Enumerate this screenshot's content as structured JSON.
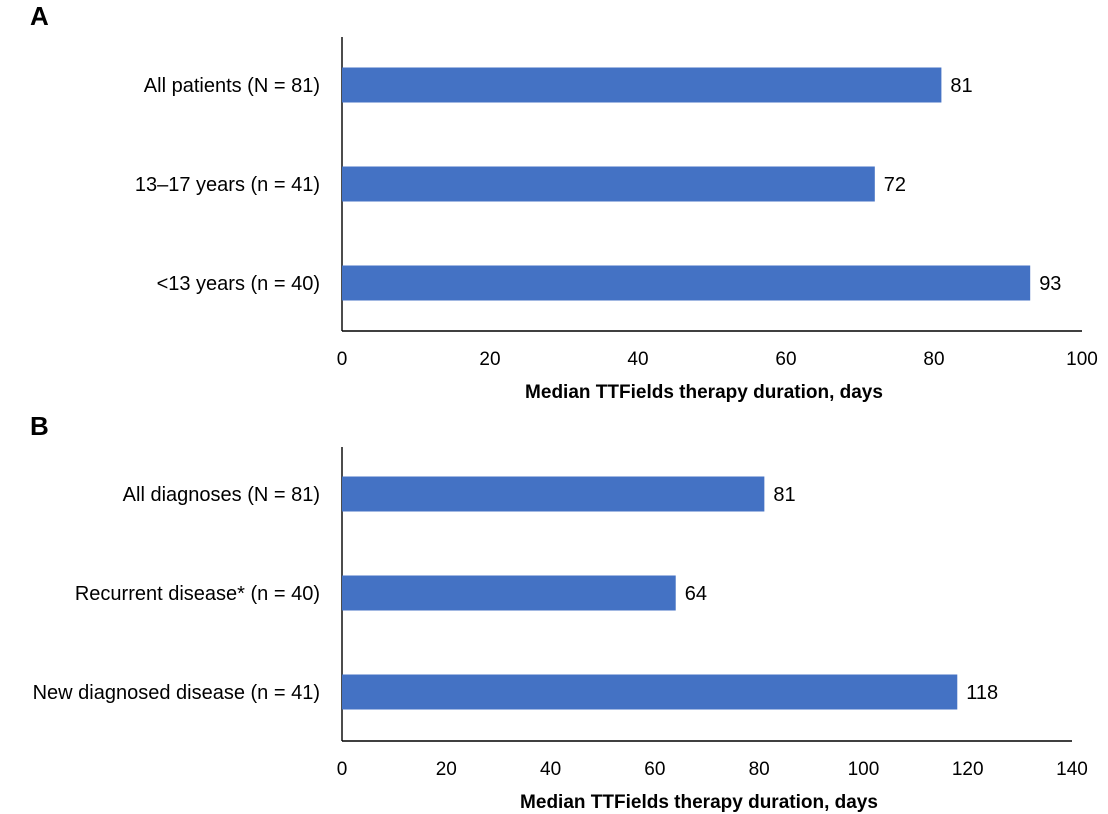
{
  "chart_data": [
    {
      "type": "bar",
      "orientation": "horizontal",
      "panel_label": "A",
      "categories": [
        "All patients (N = 81)",
        "13–17 years (n = 41)",
        "<13 years (n = 40)"
      ],
      "values": [
        81,
        72,
        93
      ],
      "xlabel": "Median TTFields therapy duration, days",
      "xlim": [
        0,
        100
      ],
      "xticks": [
        0,
        20,
        40,
        60,
        80,
        100
      ],
      "bar_color": "#4472C4",
      "grid": false
    },
    {
      "type": "bar",
      "orientation": "horizontal",
      "panel_label": "B",
      "categories": [
        "All diagnoses (N = 81)",
        "Recurrent disease* (n = 40)",
        "New diagnosed disease (n = 41)"
      ],
      "values": [
        81,
        64,
        118
      ],
      "xlabel": "Median TTFields therapy duration, days",
      "xlim": [
        0,
        140
      ],
      "xticks": [
        0,
        20,
        40,
        60,
        80,
        100,
        120,
        140
      ],
      "bar_color": "#4472C4",
      "grid": false
    }
  ]
}
